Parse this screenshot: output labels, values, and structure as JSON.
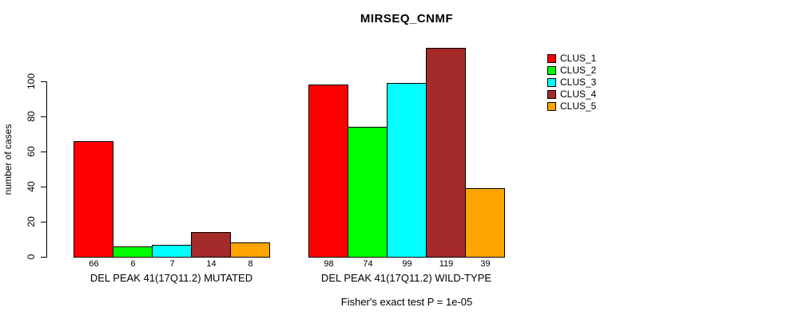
{
  "chart_data": {
    "type": "bar",
    "title": "MIRSEQ_CNMF",
    "ylabel": "number of cases",
    "xlabel": "",
    "ylim": [
      0,
      120
    ],
    "yticks": [
      0,
      20,
      40,
      60,
      80,
      100
    ],
    "grid": false,
    "legend_position": "right",
    "categories": [
      "DEL PEAK 41(17Q11.2) MUTATED",
      "DEL PEAK 41(17Q11.2) WILD-TYPE"
    ],
    "series": [
      {
        "name": "CLUS_1",
        "color": "#FF0000",
        "values": [
          66,
          98
        ]
      },
      {
        "name": "CLUS_2",
        "color": "#00FF00",
        "values": [
          6,
          74
        ]
      },
      {
        "name": "CLUS_3",
        "color": "#00FFFF",
        "values": [
          7,
          99
        ]
      },
      {
        "name": "CLUS_4",
        "color": "#A52A2A",
        "values": [
          14,
          119
        ]
      },
      {
        "name": "CLUS_5",
        "color": "#FFA500",
        "values": [
          8,
          39
        ]
      }
    ],
    "bar_value_labels": [
      [
        66,
        6,
        7,
        14,
        8
      ],
      [
        98,
        74,
        99,
        119,
        39
      ]
    ],
    "annotation": "Fisher's exact test P = 1e-05"
  }
}
